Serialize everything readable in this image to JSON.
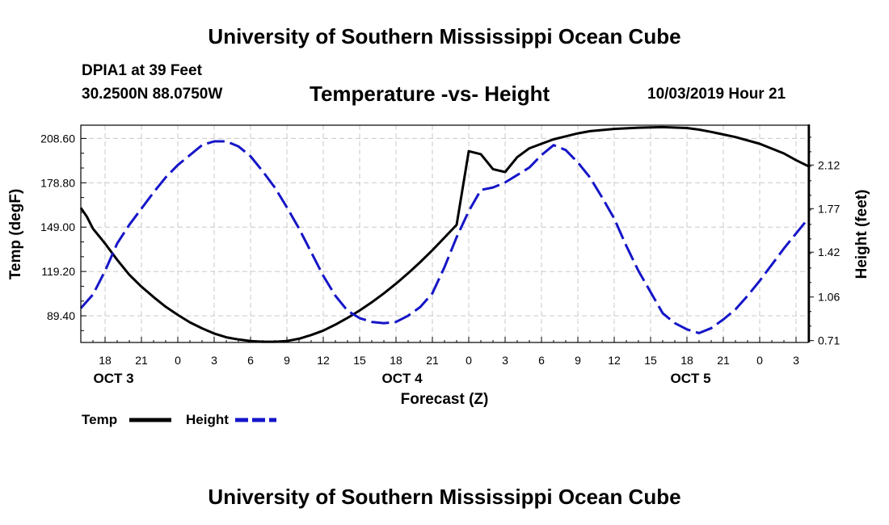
{
  "header": {
    "title": "University of Southern Mississippi Ocean Cube"
  },
  "footer": {
    "title": "University of Southern Mississippi Ocean Cube"
  },
  "station": {
    "name": "DPIA1 at 39 Feet",
    "coords": "30.2500N 88.0750W"
  },
  "chart_meta": {
    "title": "Temperature -vs- Height",
    "datetime": "10/03/2019 Hour 21"
  },
  "colors": {
    "temp": "#000000",
    "height": "#1515c8",
    "grid": "#c8c8c8"
  },
  "chart_data": {
    "type": "line",
    "title": "Temperature -vs- Height",
    "xlabel": "Forecast (Z)",
    "ylabel": "Temp (degF)",
    "y2label": "Height (feet)",
    "x_unit": "hours since OCT 3 00Z",
    "xlim": [
      16,
      76
    ],
    "x_ticks": [
      18,
      21,
      24,
      27,
      30,
      33,
      36,
      39,
      42,
      45,
      48,
      51,
      54,
      57,
      60,
      63,
      66,
      69,
      72,
      75
    ],
    "x_tick_labels": [
      "18",
      "21",
      "0",
      "3",
      "6",
      "9",
      "12",
      "15",
      "18",
      "21",
      "0",
      "3",
      "6",
      "9",
      "12",
      "15",
      "18",
      "21",
      "0",
      "3"
    ],
    "day_labels": [
      {
        "x": 18.7,
        "label": "OCT 3"
      },
      {
        "x": 42.5,
        "label": "OCT 4"
      },
      {
        "x": 66.3,
        "label": "OCT 5"
      }
    ],
    "ylim": [
      71.5,
      217.5
    ],
    "y_ticks": [
      89.4,
      119.2,
      149.0,
      178.8,
      208.6
    ],
    "y_tick_labels": [
      "89.40",
      "119.20",
      "149.00",
      "178.80",
      "208.60"
    ],
    "y2lim": [
      0.695,
      2.44
    ],
    "y2_ticks": [
      0.71,
      1.06,
      1.42,
      1.77,
      2.12
    ],
    "y2_tick_labels": [
      "0.71",
      "1.06",
      "1.42",
      "1.77",
      "2.12"
    ],
    "series": [
      {
        "name": "Temp",
        "axis": "left",
        "style": "solid",
        "x": [
          16,
          16.5,
          17,
          18,
          19,
          20,
          21,
          22,
          23,
          24,
          25,
          26,
          27,
          28,
          29,
          30,
          31,
          32,
          33,
          34,
          35,
          36,
          37,
          38,
          39,
          40,
          41,
          42,
          43,
          44,
          45,
          46,
          47,
          48,
          49,
          50,
          51,
          52,
          53,
          54,
          55,
          56,
          57,
          58,
          60,
          62,
          64,
          66,
          67,
          68,
          70,
          72,
          74,
          75,
          76
        ],
        "y": [
          162,
          156,
          148,
          138,
          127,
          117,
          109,
          102,
          95.5,
          90,
          85,
          81,
          77.5,
          75,
          73.5,
          72.5,
          72,
          72,
          72.5,
          74,
          76.5,
          79.5,
          83.5,
          88,
          93,
          98.5,
          104.5,
          111,
          118,
          125.5,
          133.5,
          142,
          150.5,
          200,
          198,
          188,
          186,
          196,
          202,
          205,
          208,
          210,
          212,
          213.5,
          215,
          215.8,
          216.2,
          215.6,
          214.5,
          213,
          209.5,
          205,
          198.5,
          194,
          190
        ]
      },
      {
        "name": "Height",
        "axis": "right",
        "style": "dashed",
        "x": [
          16,
          17,
          18,
          19,
          20,
          21,
          22,
          23,
          24,
          25,
          26,
          27,
          28,
          29,
          30,
          31,
          32,
          33,
          34,
          35,
          36,
          37,
          38,
          39,
          40,
          41,
          42,
          43,
          44,
          45,
          46,
          47,
          48,
          49,
          50,
          51,
          52,
          53,
          54,
          55,
          56,
          57,
          58,
          59,
          60,
          61,
          62,
          63,
          64,
          65,
          66,
          67,
          68,
          69,
          70,
          71,
          72,
          73,
          74,
          75,
          76
        ],
        "y": [
          0.97,
          1.08,
          1.27,
          1.49,
          1.64,
          1.77,
          1.9,
          2.02,
          2.12,
          2.2,
          2.28,
          2.31,
          2.31,
          2.27,
          2.19,
          2.07,
          1.94,
          1.78,
          1.61,
          1.42,
          1.23,
          1.07,
          0.95,
          0.89,
          0.86,
          0.85,
          0.86,
          0.91,
          0.98,
          1.09,
          1.3,
          1.54,
          1.75,
          1.92,
          1.94,
          1.98,
          2.04,
          2.1,
          2.2,
          2.28,
          2.24,
          2.14,
          2.02,
          1.86,
          1.69,
          1.47,
          1.27,
          1.1,
          0.93,
          0.85,
          0.8,
          0.77,
          0.81,
          0.88,
          0.96,
          1.07,
          1.19,
          1.32,
          1.45,
          1.57,
          1.69
        ]
      }
    ],
    "legend": {
      "placement": "bottom-left",
      "items": [
        {
          "label": "Temp",
          "series": "Temp"
        },
        {
          "label": "Height",
          "series": "Height"
        }
      ]
    }
  }
}
